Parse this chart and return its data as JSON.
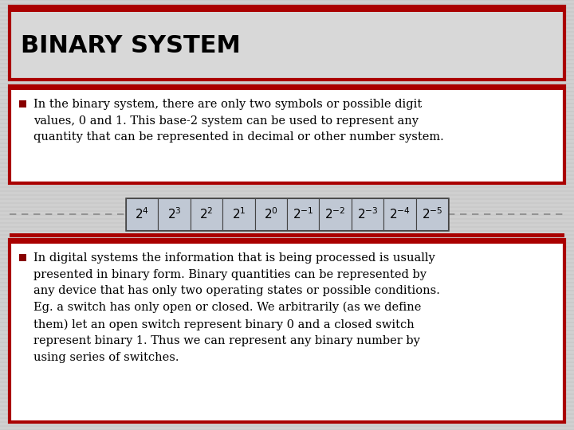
{
  "title": "BINARY SYSTEM",
  "bg_color": "#d0d0d0",
  "stripe_color": "#c0c0c0",
  "title_box_color": "#d8d8d8",
  "title_border_color": "#aa0000",
  "title_top_bar_color": "#aa0000",
  "bullet_box_border": "#aa0000",
  "bullet_box_bg": "#ffffff",
  "bullet_color": "#880000",
  "text1": "In the binary system, there are only two symbols or possible digit\nvalues, 0 and 1. This base-2 system can be used to represent any\nquantity that can be represented in decimal or other number system.",
  "text2": "In digital systems the information that is being processed is usually\npresented in binary form. Binary quantities can be represented by\nany device that has only two operating states or possible conditions.\nEg. a switch has only open or closed. We arbitrarily (as we define\nthem) let an open switch represent binary 0 and a closed switch\nrepresent binary 1. Thus we can represent any binary number by\nusing series of switches.",
  "powers": [
    "2^4",
    "2^3",
    "2^2",
    "2^1",
    "2^0",
    "2^{-1}",
    "2^{-2}",
    "2^{-3}",
    "2^{-4}",
    "2^{-5}"
  ],
  "dashed_line_color": "#888888",
  "separator_bar_color": "#aa0000",
  "title_fontsize": 22,
  "text_fontsize": 10.5,
  "powers_fontsize": 11
}
